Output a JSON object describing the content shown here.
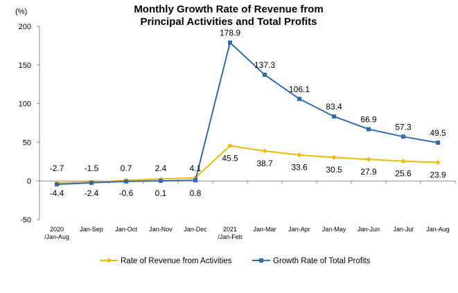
{
  "chart_data": {
    "type": "line",
    "title_lines": [
      "Monthly Growth Rate of Revenue from",
      "Principal Activities  and Total Profits"
    ],
    "yunit": "(%)",
    "ylim": [
      -50,
      200
    ],
    "yticks": [
      -50,
      0,
      50,
      100,
      150,
      200
    ],
    "grid": false,
    "legend_position": "bottom",
    "categories": [
      [
        "2020",
        "/Jan-Aug"
      ],
      [
        "Jan-Sep"
      ],
      [
        "Jan-Oct"
      ],
      [
        "Jan-Nov"
      ],
      [
        "Jan-Dec"
      ],
      [
        "2021",
        "/Jan-Feb"
      ],
      [
        "Jan-Mar"
      ],
      [
        "Jan-Apr"
      ],
      [
        "Jan-May"
      ],
      [
        "Jan-Jun"
      ],
      [
        "Jan-Jul"
      ],
      [
        "Jan-Aug"
      ]
    ],
    "series": [
      {
        "name": "Rate of Revenue from Activities",
        "color": "#f5b800",
        "marker": "diamond",
        "values": [
          -2.7,
          -1.5,
          0.7,
          2.4,
          4.1,
          45.5,
          38.7,
          33.6,
          30.5,
          27.9,
          25.6,
          23.9
        ],
        "labels": [
          "-2.7",
          "-1.5",
          "0.7",
          "2.4",
          "4.1",
          "45.5",
          "38.7",
          "33.6",
          "30.5",
          "27.9",
          "25.6",
          "23.9"
        ],
        "label_pos": [
          "above",
          "above",
          "above",
          "above",
          "above",
          "below",
          "below",
          "below",
          "below",
          "below",
          "below",
          "below"
        ]
      },
      {
        "name": "Growth Rate of Total Profits",
        "color": "#2e6bb5",
        "marker": "square",
        "values": [
          -4.4,
          -2.4,
          -0.6,
          0.1,
          0.8,
          178.9,
          137.3,
          106.1,
          83.4,
          66.9,
          57.3,
          49.5
        ],
        "labels": [
          "-4.4",
          "-2.4",
          "-0.6",
          "0.1",
          "0.8",
          "178.9",
          "137.3",
          "106.1",
          "83.4",
          "66.9",
          "57.3",
          "49.5"
        ],
        "label_pos": [
          "below",
          "below",
          "below",
          "below",
          "below",
          "above",
          "above",
          "above",
          "above",
          "above",
          "above",
          "above"
        ]
      }
    ]
  }
}
